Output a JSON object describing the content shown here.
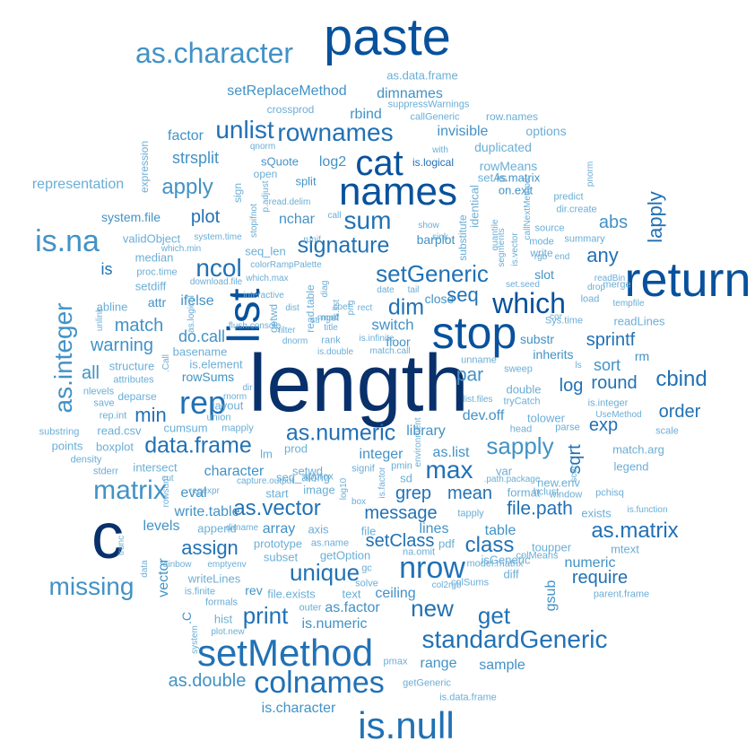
{
  "palette": [
    "#08306b",
    "#08519c",
    "#2171b5",
    "#4292c6",
    "#6baed6",
    "#9ecae1"
  ],
  "words": [
    {
      "text": "length",
      "w": 1.0
    },
    {
      "text": "c",
      "w": 0.85
    },
    {
      "text": "paste",
      "w": 0.7
    },
    {
      "text": "return",
      "w": 0.66
    },
    {
      "text": "stop",
      "w": 0.62
    },
    {
      "text": "list",
      "w": 0.6
    },
    {
      "text": "names",
      "w": 0.54
    },
    {
      "text": "setMethod",
      "w": 0.52
    },
    {
      "text": "is.null",
      "w": 0.52
    },
    {
      "text": "cat",
      "w": 0.5
    },
    {
      "text": "colnames",
      "w": 0.44
    },
    {
      "text": "rep",
      "w": 0.44
    },
    {
      "text": "nrow",
      "w": 0.44
    },
    {
      "text": "as.character",
      "w": 0.4
    },
    {
      "text": "is.na",
      "w": 0.4
    },
    {
      "text": "matrix",
      "w": 0.38
    },
    {
      "text": "which",
      "w": 0.38
    },
    {
      "text": "missing",
      "w": 0.36
    },
    {
      "text": "standardGeneric",
      "w": 0.36
    },
    {
      "text": "unlist",
      "w": 0.35
    },
    {
      "text": "rownames",
      "w": 0.35
    },
    {
      "text": "sum",
      "w": 0.34
    },
    {
      "text": "max",
      "w": 0.34
    },
    {
      "text": "as.integer",
      "w": 0.34
    },
    {
      "text": "ncol",
      "w": 0.33
    },
    {
      "text": "setGeneric",
      "w": 0.32
    },
    {
      "text": "sapply",
      "w": 0.32
    },
    {
      "text": "unique",
      "w": 0.32
    },
    {
      "text": "signature",
      "w": 0.3
    },
    {
      "text": "as.numeric",
      "w": 0.3
    },
    {
      "text": "data.frame",
      "w": 0.3
    },
    {
      "text": "get",
      "w": 0.3
    },
    {
      "text": "new",
      "w": 0.3
    },
    {
      "text": "print",
      "w": 0.3
    },
    {
      "text": "apply",
      "w": 0.28
    },
    {
      "text": "dim",
      "w": 0.28
    },
    {
      "text": "as.vector",
      "w": 0.28
    },
    {
      "text": "cbind",
      "w": 0.28
    },
    {
      "text": "class",
      "w": 0.28
    },
    {
      "text": "as.matrix",
      "w": 0.28
    },
    {
      "text": "lapply",
      "w": 0.26
    },
    {
      "text": "seq",
      "w": 0.26
    },
    {
      "text": "any",
      "w": 0.26
    },
    {
      "text": "min",
      "w": 0.26
    },
    {
      "text": "assign",
      "w": 0.26
    },
    {
      "text": "par",
      "w": 0.24
    },
    {
      "text": "file.path",
      "w": 0.24
    },
    {
      "text": "plot",
      "w": 0.22
    },
    {
      "text": "match",
      "w": 0.22
    },
    {
      "text": "warning",
      "w": 0.22
    },
    {
      "text": "all",
      "w": 0.22
    },
    {
      "text": "abs",
      "w": 0.22
    },
    {
      "text": "sprintf",
      "w": 0.22
    },
    {
      "text": "log",
      "w": 0.22
    },
    {
      "text": "round",
      "w": 0.22
    },
    {
      "text": "order",
      "w": 0.22
    },
    {
      "text": "exp",
      "w": 0.22
    },
    {
      "text": "sqrt",
      "w": 0.22
    },
    {
      "text": "mean",
      "w": 0.22
    },
    {
      "text": "grep",
      "w": 0.22
    },
    {
      "text": "message",
      "w": 0.22
    },
    {
      "text": "setClass",
      "w": 0.22
    },
    {
      "text": "require",
      "w": 0.22
    },
    {
      "text": "is",
      "w": 0.2
    },
    {
      "text": "strsplit",
      "w": 0.2
    },
    {
      "text": "do.call",
      "w": 0.2
    },
    {
      "text": "sort",
      "w": 0.2
    },
    {
      "text": "switch",
      "w": 0.2
    },
    {
      "text": "log2",
      "w": 0.18
    },
    {
      "text": "factor",
      "w": 0.18
    },
    {
      "text": "nchar",
      "w": 0.18
    },
    {
      "text": "rbind",
      "w": 0.18
    },
    {
      "text": "dimnames",
      "w": 0.18
    },
    {
      "text": "setReplaceMethod",
      "w": 0.18
    },
    {
      "text": "invisible",
      "w": 0.18
    },
    {
      "text": "ifelse",
      "w": 0.18
    },
    {
      "text": "eval",
      "w": 0.18
    },
    {
      "text": "write.table",
      "w": 0.18
    },
    {
      "text": "vector",
      "w": 0.18
    },
    {
      "text": "levels",
      "w": 0.18
    },
    {
      "text": "library",
      "w": 0.18
    },
    {
      "text": "dev.off",
      "w": 0.18
    },
    {
      "text": "lines",
      "w": 0.18
    },
    {
      "text": "table",
      "w": 0.18
    },
    {
      "text": "character",
      "w": 0.18
    },
    {
      "text": "integer",
      "w": 0.18
    },
    {
      "text": "as.list",
      "w": 0.18
    },
    {
      "text": "array",
      "w": 0.18
    },
    {
      "text": "range",
      "w": 0.18
    },
    {
      "text": "sample",
      "w": 0.18
    },
    {
      "text": "as.double",
      "w": 0.18
    },
    {
      "text": "gsub",
      "w": 0.18
    },
    {
      "text": "numeric",
      "w": 0.18
    },
    {
      "text": "as.factor",
      "w": 0.18
    },
    {
      "text": "ceiling",
      "w": 0.18
    },
    {
      "text": "is.numeric",
      "w": 0.18
    },
    {
      "text": "is.character",
      "w": 0.18
    },
    {
      "text": "rev",
      "w": 0.16
    },
    {
      "text": "attr",
      "w": 0.16
    },
    {
      "text": "rowSums",
      "w": 0.16
    },
    {
      "text": "representation",
      "w": 0.16
    },
    {
      "text": "system.file",
      "w": 0.16
    },
    {
      "text": "options",
      "w": 0.16
    },
    {
      "text": "duplicated",
      "w": 0.16
    },
    {
      "text": "rowMeans",
      "w": 0.16
    },
    {
      "text": "floor",
      "w": 0.16
    },
    {
      "text": "rm",
      "w": 0.16
    },
    {
      "text": "inherits",
      "w": 0.16
    },
    {
      "text": "slot",
      "w": 0.16
    },
    {
      "text": "substr",
      "w": 0.16
    },
    {
      "text": "as.data.frame",
      "w": 0.14
    },
    {
      "text": "crossprod",
      "w": 0.14
    },
    {
      "text": "row.names",
      "w": 0.14
    },
    {
      "text": "suppressWarnings",
      "w": 0.12
    },
    {
      "text": "callGeneric",
      "w": 0.12
    },
    {
      "text": "is.logical",
      "w": 0.14
    },
    {
      "text": "sQuote",
      "w": 0.14
    },
    {
      "text": "split",
      "w": 0.14
    },
    {
      "text": "identical",
      "w": 0.14
    },
    {
      "text": "setAs",
      "w": 0.14
    },
    {
      "text": "is.matrix",
      "w": 0.14
    },
    {
      "text": "on.exit",
      "w": 0.14
    },
    {
      "text": "validObject",
      "w": 0.14
    },
    {
      "text": "median",
      "w": 0.14
    },
    {
      "text": "proc.time",
      "w": 0.12
    },
    {
      "text": "setdiff",
      "w": 0.14
    },
    {
      "text": "abline",
      "w": 0.14
    },
    {
      "text": "structure",
      "w": 0.14
    },
    {
      "text": "attributes",
      "w": 0.12
    },
    {
      "text": "nlevels",
      "w": 0.12
    },
    {
      "text": "save",
      "w": 0.12
    },
    {
      "text": "rep.int",
      "w": 0.12
    },
    {
      "text": "read.csv",
      "w": 0.14
    },
    {
      "text": "substring",
      "w": 0.12
    },
    {
      "text": "points",
      "w": 0.14
    },
    {
      "text": "boxplot",
      "w": 0.14
    },
    {
      "text": "density",
      "w": 0.12
    },
    {
      "text": "stderr",
      "w": 0.12
    },
    {
      "text": "intersect",
      "w": 0.14
    },
    {
      "text": "cumsum",
      "w": 0.14
    },
    {
      "text": "mapply",
      "w": 0.12
    },
    {
      "text": "union",
      "w": 0.12
    },
    {
      "text": "layout",
      "w": 0.14
    },
    {
      "text": "basename",
      "w": 0.14
    },
    {
      "text": "is.element",
      "w": 0.14
    },
    {
      "text": "seq_len",
      "w": 0.14
    },
    {
      "text": "mget",
      "w": 0.12
    },
    {
      "text": "rank",
      "w": 0.12
    },
    {
      "text": "double",
      "w": 0.14
    },
    {
      "text": "tolower",
      "w": 0.14
    },
    {
      "text": "head",
      "w": 0.14
    },
    {
      "text": "match.arg",
      "w": 0.14
    },
    {
      "text": "legend",
      "w": 0.14
    },
    {
      "text": "exists",
      "w": 0.14
    },
    {
      "text": "new.env",
      "w": 0.14
    },
    {
      "text": "format",
      "w": 0.14
    },
    {
      "text": "isGeneric",
      "w": 0.14
    },
    {
      "text": "diff",
      "w": 0.14
    },
    {
      "text": "colSums",
      "w": 0.12
    },
    {
      "text": "toupper",
      "w": 0.14
    },
    {
      "text": "mtext",
      "w": 0.14
    },
    {
      "text": "writeLines",
      "w": 0.14
    },
    {
      "text": "is.finite",
      "w": 0.12
    },
    {
      "text": "hist",
      "w": 0.14
    },
    {
      "text": "formals",
      "w": 0.12
    },
    {
      "text": "getOption",
      "w": 0.14
    },
    {
      "text": "subset",
      "w": 0.14
    },
    {
      "text": "prototype",
      "w": 0.14
    },
    {
      "text": "append",
      "w": 0.14
    },
    {
      "text": "file.exists",
      "w": 0.14
    },
    {
      "text": "text",
      "w": 0.14
    },
    {
      "text": "file",
      "w": 0.14
    },
    {
      "text": "axis",
      "w": 0.14
    },
    {
      "text": "as.name",
      "w": 0.12
    },
    {
      "text": "pdf",
      "w": 0.14
    },
    {
      "text": "start",
      "w": 0.14
    },
    {
      "text": "seq_along",
      "w": 0.14
    },
    {
      "text": "image",
      "w": 0.14
    },
    {
      "text": "sd",
      "w": 0.14
    },
    {
      "text": "var",
      "w": 0.14
    },
    {
      "text": "lm",
      "w": 0.14
    },
    {
      "text": "prod",
      "w": 0.14
    },
    {
      "text": "setwd",
      "w": 0.14
    },
    {
      "text": "readLines",
      "w": 0.14
    },
    {
      "text": "Sys.time",
      "w": 0.12
    },
    {
      "text": "source",
      "w": 0.12
    },
    {
      "text": "summary",
      "w": 0.12
    },
    {
      "text": "mode",
      "w": 0.12
    },
    {
      "text": "predict",
      "w": 0.12
    },
    {
      "text": "dir.create",
      "w": 0.12
    },
    {
      "text": "merge",
      "w": 0.12
    },
    {
      "text": "load",
      "w": 0.12
    },
    {
      "text": "sweep",
      "w": 0.12
    },
    {
      "text": "unname",
      "w": 0.12
    },
    {
      "text": "parse",
      "w": 0.12
    },
    {
      "text": "scale",
      "w": 0.12
    },
    {
      "text": "is.integer",
      "w": 0.12
    },
    {
      "text": "UseMethod",
      "w": 0.1
    },
    {
      "text": "hclust",
      "w": 0.12
    },
    {
      "text": "window",
      "w": 0.12
    },
    {
      "text": "pchisq",
      "w": 0.12
    },
    {
      "text": "colMeans",
      "w": 0.12
    },
    {
      "text": "model.matrix",
      "w": 0.12
    },
    {
      "text": "col2rgb",
      "w": 0.1
    },
    {
      "text": "parent.frame",
      "w": 0.12
    },
    {
      "text": "tapply",
      "w": 0.12
    },
    {
      "text": "na.omit",
      "w": 0.12
    },
    {
      "text": "gc",
      "w": 0.12
    },
    {
      "text": "solve",
      "w": 0.12
    },
    {
      "text": "outer",
      "w": 0.12
    },
    {
      "text": "pmax",
      "w": 0.12
    },
    {
      "text": "getGeneric",
      "w": 0.12
    },
    {
      "text": "is.data.frame",
      "w": 0.12
    },
    {
      "text": "plot.new",
      "w": 0.1
    },
    {
      "text": "rainbow",
      "w": 0.1
    },
    {
      "text": "emptyenv",
      "w": 0.1
    },
    {
      "text": "capture.output",
      "w": 0.1
    },
    {
      "text": "regexpr",
      "w": 0.1
    },
    {
      "text": "approx",
      "w": 0.12
    },
    {
      "text": "signif",
      "w": 0.12
    },
    {
      "text": "pmin",
      "w": 0.12
    },
    {
      "text": "list.files",
      "w": 0.1
    },
    {
      "text": "tryCatch",
      "w": 0.12
    },
    {
      "text": "environment",
      "w": 0.1
    },
    {
      "text": "box",
      "w": 0.1
    },
    {
      "text": ".path.package",
      "w": 0.1
    },
    {
      "text": "is.function",
      "w": 0.1
    },
    {
      "text": "download.file",
      "w": 0.1
    },
    {
      "text": "flush.console",
      "w": 0.1
    },
    {
      "text": "which.max",
      "w": 0.1
    },
    {
      "text": "interactive",
      "w": 0.1
    },
    {
      "text": "colorRampPalette",
      "w": 0.1
    },
    {
      "text": "system.time",
      "w": 0.1
    },
    {
      "text": "which.min",
      "w": 0.1
    },
    {
      "text": "read.delim",
      "w": 0.1
    },
    {
      "text": "open",
      "w": 0.12
    },
    {
      "text": "qnorm",
      "w": 0.1
    },
    {
      "text": "with",
      "w": 0.1
    },
    {
      "text": "sink",
      "w": 0.1
    },
    {
      "text": "show",
      "w": 0.1
    },
    {
      "text": "runif",
      "w": 0.1
    },
    {
      "text": "rgb",
      "w": 0.1
    },
    {
      "text": "end",
      "w": 0.1
    },
    {
      "text": "write",
      "w": 0.12
    },
    {
      "text": "readBin",
      "w": 0.1
    },
    {
      "text": "drop",
      "w": 0.1
    },
    {
      "text": "tempfile",
      "w": 0.1
    },
    {
      "text": "set.seed",
      "w": 0.1
    },
    {
      "text": "date",
      "w": 0.1
    },
    {
      "text": "tail",
      "w": 0.1
    },
    {
      "text": "cor",
      "w": 0.1
    },
    {
      "text": "coef",
      "w": 0.1
    },
    {
      "text": "mad",
      "w": 0.1
    },
    {
      "text": "title",
      "w": 0.1
    },
    {
      "text": "dist",
      "w": 0.1
    },
    {
      "text": "filter",
      "w": 0.1
    },
    {
      "text": "dnorm",
      "w": 0.1
    },
    {
      "text": "is.double",
      "w": 0.1
    },
    {
      "text": "match.call",
      "w": 0.1
    },
    {
      "text": "rect",
      "w": 0.1
    },
    {
      "text": "str",
      "w": 0.1
    },
    {
      "text": "call",
      "w": 0.1
    },
    {
      "text": "is.infinite",
      "w": 0.1
    },
    {
      "text": "ls",
      "w": 0.1
    },
    {
      "text": "deparse",
      "w": 0.1
    },
    {
      "text": "rnorm",
      "w": 0.12
    },
    {
      "text": "dir",
      "w": 0.1
    },
    {
      "text": "dirname",
      "w": 0.1
    },
    {
      "text": "cut",
      "w": 0.1
    },
    {
      "text": "rowsum",
      "w": 0.1
    },
    {
      "text": "trunc",
      "w": 0.1
    },
    {
      "text": "unlink",
      "w": 0.1
    },
    {
      "text": "sign",
      "w": 0.1
    },
    {
      "text": "stopifnot",
      "w": 0.12
    },
    {
      "text": "p.adjust",
      "w": 0.1
    },
    {
      "text": "as.logical",
      "w": 0.1
    },
    {
      "text": "substitute",
      "w": 0.1
    },
    {
      "text": "quantile",
      "w": 0.12
    },
    {
      "text": "segments",
      "w": 0.1
    },
    {
      "text": "is.vector",
      "w": 0.1
    },
    {
      "text": "callNextMethod",
      "w": 0.1
    },
    {
      "text": "pnorm",
      "w": 0.1
    },
    {
      "text": "expression",
      "w": 0.1
    },
    {
      "text": "read.table",
      "w": 0.12
    },
    {
      "text": "diag",
      "w": 0.12
    },
    {
      "text": "is.list",
      "w": 0.1
    },
    {
      "text": "png",
      "w": 0.1
    },
    {
      "text": "getwd",
      "w": 0.1
    },
    {
      "text": "close",
      "w": 0.12
    },
    {
      "text": ".C",
      "w": 0.14
    },
    {
      "text": ".Call",
      "w": 0.14
    },
    {
      "text": "data",
      "w": 0.1
    },
    {
      "text": "system",
      "w": 0.1
    },
    {
      "text": "scan",
      "w": 0.1
    },
    {
      "text": "log10",
      "w": 0.1
    },
    {
      "text": "is.factor",
      "w": 0.1
    },
    {
      "text": "barplot",
      "w": 0.1
    },
    {
      "text": "try",
      "w": 0.12
    }
  ]
}
